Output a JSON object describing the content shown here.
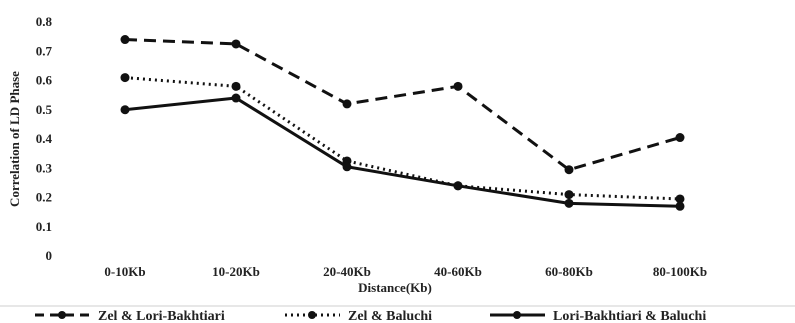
{
  "chart_data": {
    "type": "line",
    "title": "",
    "xlabel": "Distance(Kb)",
    "ylabel": "Correlation of LD Phase",
    "categories": [
      "0-10Kb",
      "10-20Kb",
      "20-40Kb",
      "40-60Kb",
      "60-80Kb",
      "80-100Kb"
    ],
    "ylim": [
      0,
      0.8
    ],
    "yticks": [
      "0",
      "0.1",
      "0.2",
      "0.3",
      "0.4",
      "0.5",
      "0.6",
      "0.7",
      "0.8"
    ],
    "grid": false,
    "legend_position": "bottom",
    "series": [
      {
        "name": "Zel & Lori-Bakhtiari",
        "style": "dashed",
        "color": "#111111",
        "values": [
          0.74,
          0.725,
          0.52,
          0.58,
          0.295,
          0.405
        ]
      },
      {
        "name": "Zel & Baluchi",
        "style": "dotted",
        "color": "#111111",
        "values": [
          0.61,
          0.58,
          0.325,
          0.24,
          0.21,
          0.195
        ]
      },
      {
        "name": "Lori-Bakhtiari & Baluchi",
        "style": "solid",
        "color": "#111111",
        "values": [
          0.5,
          0.54,
          0.305,
          0.24,
          0.18,
          0.17
        ]
      }
    ]
  }
}
